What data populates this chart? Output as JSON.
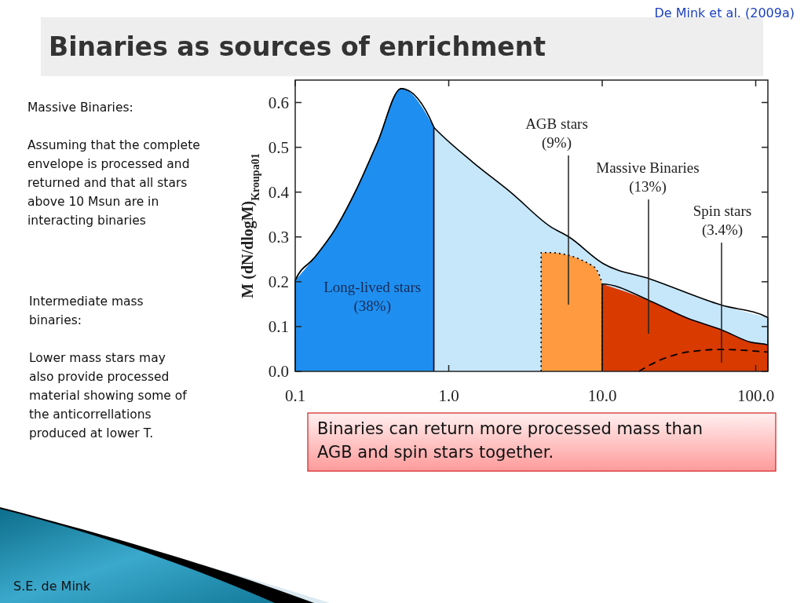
{
  "chart_data": {
    "type": "area",
    "title": "Binaries as sources of enrichment",
    "ylabel": "M (dN/dlogM)$_{Kroupa01}$",
    "log": "x",
    "xlim": [
      0.1,
      120
    ],
    "ylim": [
      0,
      0.65
    ],
    "xticks": [
      0.1,
      {
        "value": 1,
        "label": "1.0"
      },
      {
        "value": 10,
        "label": "10.0"
      },
      {
        "value": 100,
        "label": "100.0"
      }
    ],
    "yticks": [
      {
        "value": 0,
        "label": "0.0"
      },
      0.1,
      0.2,
      0.3,
      0.4,
      0.5,
      0.6
    ],
    "series": [
      {
        "color": "#c6e6fa",
        "x": [
          0.1,
          0.133,
          0.182,
          0.249,
          0.342,
          0.491,
          0.798,
          1.41,
          2.55,
          4.6,
          6.07,
          10.1,
          20.6,
          59.7,
          120
        ],
        "values": [
          0.203,
          0.253,
          0.317,
          0.404,
          0.509,
          0.631,
          0.545,
          0.469,
          0.399,
          0.323,
          0.3,
          0.241,
          0.206,
          0.148,
          0.12
        ]
      },
      {
        "name": "Long-lived stars\n(38%)",
        "color": "#1e8ff0",
        "x": [
          0.1,
          0.133,
          0.182,
          0.249,
          0.342,
          0.491,
          0.8
        ],
        "values": [
          0.203,
          0.253,
          0.317,
          0.404,
          0.509,
          0.631,
          0.545
        ]
      },
      {
        "color": "#ff9a40",
        "line_style": "dotted",
        "x": [
          4.0,
          4.5,
          8.7,
          10
        ],
        "values": [
          0.265,
          0.265,
          0.235,
          0.195
        ]
      },
      {
        "color": "#d83a00",
        "x": [
          10,
          20.6,
          35.7,
          59.7,
          93,
          120
        ],
        "values": [
          0.195,
          0.157,
          0.119,
          0.093,
          0.065,
          0.059
        ]
      },
      {
        "type": "line",
        "color": "#000000",
        "line_style": "dashed",
        "x": [
          17.3,
          24.1,
          35.7,
          59.7,
          120
        ],
        "values": [
          0,
          0.026,
          0.043,
          0.049,
          0.043
        ]
      }
    ],
    "annotations": [
      "De Mink et al. (2009a)",
      "Massive Binaries:\n\nAssuming that the complete\nenvelope is processed and\nreturned and that all stars\nabove 10 Msun are in\ninteracting binaries",
      "Intermediate mass\nbinaries:\n\nLower mass stars may\nalso provide processed\nmaterial showing some of\nthe anticorrellations\nproduced at lower T.",
      "Binaries can return more processed mass than\nAGB and spin stars together.",
      "S.E. de Mink",
      "AGB stars\n(9%)",
      "Massive Binaries\n(13%)",
      "Spin stars\n(3.4%)"
    ]
  }
}
